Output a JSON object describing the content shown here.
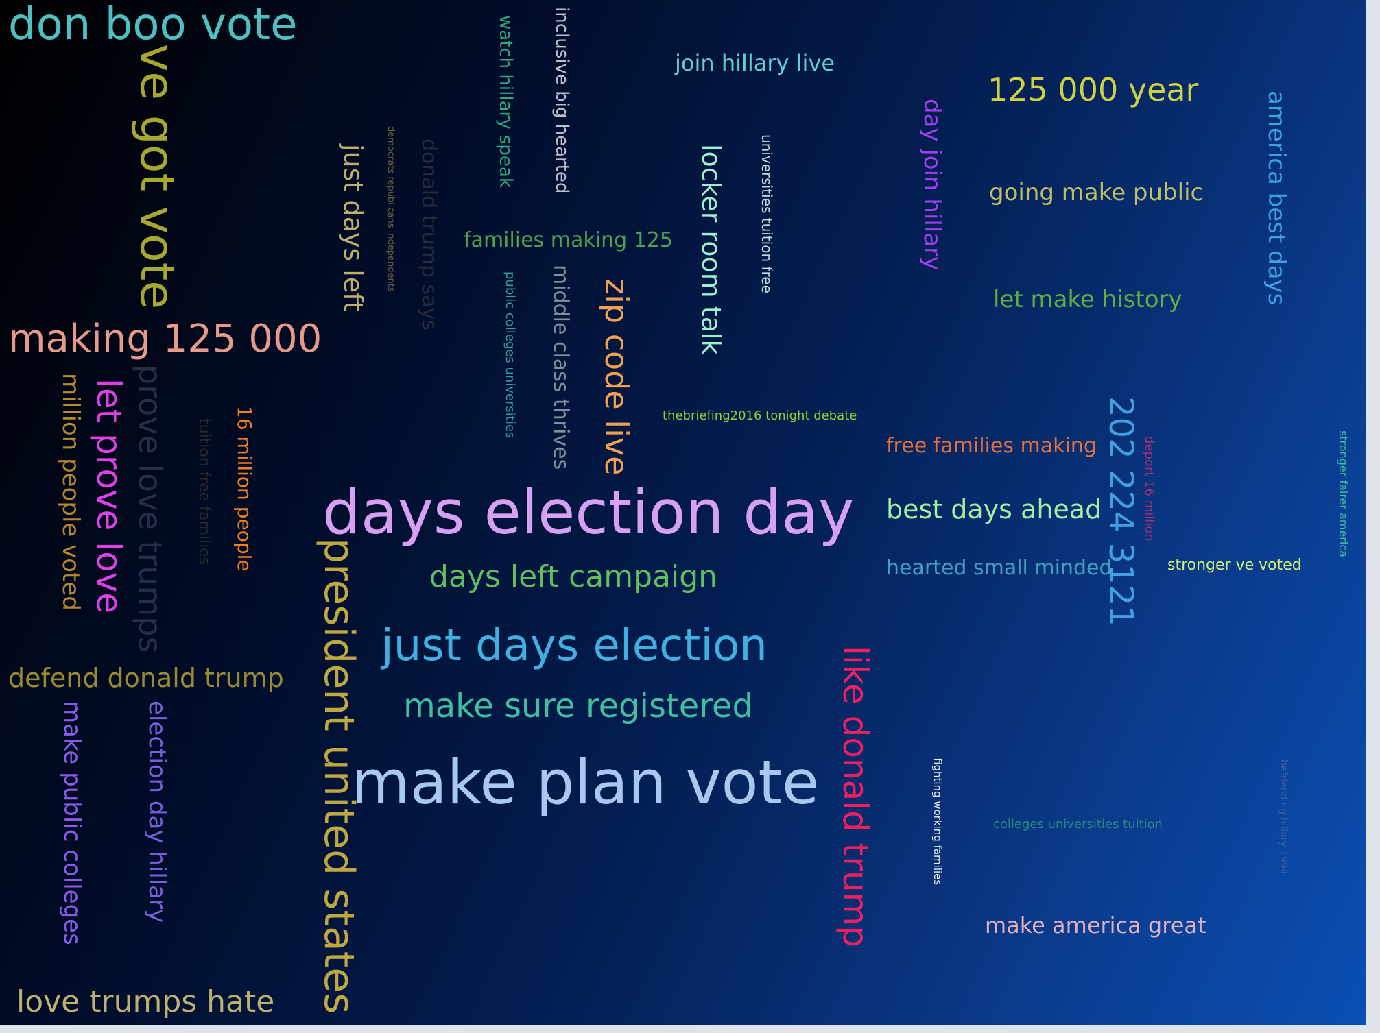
{
  "words": [
    {
      "text": "don boo vote",
      "color": "#4ec0c0"
    },
    {
      "text": "ve got vote",
      "color": "#a8a830"
    },
    {
      "text": "making 125 000",
      "color": "#e89a8a"
    },
    {
      "text": "million people voted",
      "color": "#b88a30"
    },
    {
      "text": "let prove love",
      "color": "#e040e8"
    },
    {
      "text": "prove love trumps",
      "color": "#23304a"
    },
    {
      "text": "tuition free families",
      "color": "#2a2a2a"
    },
    {
      "text": "16 million people",
      "color": "#f08020"
    },
    {
      "text": "defend donald trump",
      "color": "#9a8a30"
    },
    {
      "text": "make public colleges",
      "color": "#8a5ae8"
    },
    {
      "text": "election day hillary",
      "color": "#7a60d8"
    },
    {
      "text": "love trumps hate",
      "color": "#c0b070"
    },
    {
      "text": "just days left",
      "color": "#c0b070"
    },
    {
      "text": "democrats republicans independents",
      "color": "#6a6040"
    },
    {
      "text": "donald trump says",
      "color": "#2a2a3a"
    },
    {
      "text": "watch hillary speak",
      "color": "#2aaa80"
    },
    {
      "text": "inclusive big hearted",
      "color": "#c0c0d0"
    },
    {
      "text": "families making 125",
      "color": "#50a050"
    },
    {
      "text": "public colleges universities",
      "color": "#30a0a0"
    },
    {
      "text": "middle class thrives",
      "color": "#8090a0"
    },
    {
      "text": "zip code live",
      "color": "#f0a050"
    },
    {
      "text": "days election day",
      "color": "#d8a0f0"
    },
    {
      "text": "president united states",
      "color": "#c0a840"
    },
    {
      "text": "days left campaign",
      "color": "#60c060"
    },
    {
      "text": "just days election",
      "color": "#40b0e0"
    },
    {
      "text": "make sure registered",
      "color": "#40c0a0"
    },
    {
      "text": "make plan vote",
      "color": "#a8c8f0"
    },
    {
      "text": "join hillary live",
      "color": "#60d0d0"
    },
    {
      "text": "locker room talk",
      "color": "#a0f0d0"
    },
    {
      "text": "universities tuition free",
      "color": "#c0e0e0"
    },
    {
      "text": "thebriefing2016 tonight debate",
      "color": "#90d030"
    },
    {
      "text": "like donald trump",
      "color": "#f02060"
    },
    {
      "text": "day join hillary",
      "color": "#a040f0"
    },
    {
      "text": "125 000 year",
      "color": "#d0d040"
    },
    {
      "text": "going make public",
      "color": "#c0c060"
    },
    {
      "text": "let make history",
      "color": "#60b040"
    },
    {
      "text": "america best days",
      "color": "#40a0e0"
    },
    {
      "text": "free families making",
      "color": "#e07040"
    },
    {
      "text": "best days ahead",
      "color": "#a0f0a0"
    },
    {
      "text": "hearted small minded",
      "color": "#40a0c0"
    },
    {
      "text": "202 224 3121",
      "color": "#40a0e0"
    },
    {
      "text": "deport 16 million",
      "color": "#a03070"
    },
    {
      "text": "stronger ve voted",
      "color": "#d0f070"
    },
    {
      "text": "stronger fairer america",
      "color": "#40c0a0"
    },
    {
      "text": "fighting working families",
      "color": "#f0f0f0"
    },
    {
      "text": "colleges universities tuition",
      "color": "#2a8a80"
    },
    {
      "text": "befriending hillary 1994",
      "color": "#3a60a0"
    },
    {
      "text": "make america great",
      "color": "#e0b0c0"
    }
  ]
}
